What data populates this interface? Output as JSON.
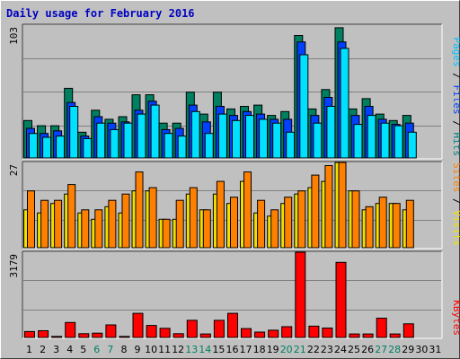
{
  "title": "Daily usage for February 2016",
  "side_labels": {
    "hits_group": [
      {
        "text": "Pages",
        "color": "#00c0ff"
      },
      {
        "text": " / ",
        "color": "#000000"
      },
      {
        "text": "Files",
        "color": "#0040ff"
      },
      {
        "text": " / ",
        "color": "#000000"
      },
      {
        "text": "Hits",
        "color": "#008080"
      }
    ],
    "sites_group": [
      {
        "text": "Sites",
        "color": "#ff8000"
      },
      {
        "text": " / ",
        "color": "#000000"
      },
      {
        "text": "Visits",
        "color": "#f0e000"
      }
    ],
    "kbytes_group": [
      {
        "text": "KBytes",
        "color": "#ff0000"
      }
    ]
  },
  "colors": {
    "background": "#c0c0c0",
    "title": "#0000c0",
    "grid": "#808080",
    "hits": "#008060",
    "files": "#0040ff",
    "pages": "#00e0ff",
    "visits": "#f0e000",
    "sites": "#ff8000",
    "kbytes": "#ff0000",
    "weekend": "#008060"
  },
  "chart_data": [
    {
      "type": "bar",
      "panel": "hits",
      "ymax_label": "103",
      "ylim": [
        0,
        103
      ],
      "x": [
        "1",
        "2",
        "3",
        "4",
        "5",
        "6",
        "7",
        "8",
        "9",
        "10",
        "11",
        "12",
        "13",
        "14",
        "15",
        "16",
        "17",
        "18",
        "19",
        "20",
        "21",
        "22",
        "23",
        "24",
        "25",
        "26",
        "27",
        "28",
        "29",
        "30",
        "31"
      ],
      "weekend_days": [
        "6",
        "7",
        "13",
        "14",
        "20",
        "21",
        "27",
        "28"
      ],
      "series": [
        {
          "name": "Hits",
          "values": [
            29,
            25,
            25,
            54,
            20,
            37,
            30,
            32,
            49,
            49,
            27,
            27,
            51,
            34,
            51,
            38,
            40,
            41,
            33,
            36,
            95,
            38,
            53,
            101,
            38,
            46,
            34,
            29,
            33,
            0,
            0
          ]
        },
        {
          "name": "Files",
          "values": [
            23,
            19,
            21,
            43,
            17,
            32,
            27,
            28,
            37,
            44,
            22,
            23,
            41,
            28,
            40,
            33,
            36,
            34,
            30,
            30,
            90,
            33,
            47,
            90,
            33,
            40,
            30,
            26,
            27,
            0,
            0
          ]
        },
        {
          "name": "Pages",
          "values": [
            19,
            16,
            17,
            40,
            15,
            27,
            22,
            27,
            34,
            41,
            19,
            17,
            36,
            19,
            34,
            29,
            33,
            30,
            27,
            20,
            80,
            27,
            40,
            85,
            26,
            33,
            27,
            25,
            20,
            0,
            0
          ]
        }
      ]
    },
    {
      "type": "bar",
      "panel": "sites",
      "ymax_label": "27",
      "ylim": [
        0,
        27
      ],
      "x": [
        "1",
        "2",
        "3",
        "4",
        "5",
        "6",
        "7",
        "8",
        "9",
        "10",
        "11",
        "12",
        "13",
        "14",
        "15",
        "16",
        "17",
        "18",
        "19",
        "20",
        "21",
        "22",
        "23",
        "24",
        "25",
        "26",
        "27",
        "28",
        "29",
        "30",
        "31"
      ],
      "series": [
        {
          "name": "Visits",
          "values": [
            12,
            11,
            14,
            17,
            11,
            9,
            13,
            11,
            18,
            18,
            9,
            9,
            17,
            12,
            17,
            14,
            21,
            11,
            10,
            14,
            17,
            19,
            21,
            27,
            18,
            12,
            14,
            14,
            12,
            0,
            0
          ]
        },
        {
          "name": "Sites",
          "values": [
            18,
            15,
            15,
            20,
            12,
            12,
            15,
            17,
            24,
            19,
            9,
            15,
            19,
            12,
            21,
            16,
            24,
            15,
            12,
            16,
            18,
            23,
            26,
            27,
            18,
            13,
            16,
            14,
            15,
            0,
            0
          ]
        }
      ]
    },
    {
      "type": "bar",
      "panel": "kbytes",
      "ymax_label": "3179",
      "ylim": [
        0,
        3179
      ],
      "x": [
        "1",
        "2",
        "3",
        "4",
        "5",
        "6",
        "7",
        "8",
        "9",
        "10",
        "11",
        "12",
        "13",
        "14",
        "15",
        "16",
        "17",
        "18",
        "19",
        "20",
        "21",
        "22",
        "23",
        "24",
        "25",
        "26",
        "27",
        "28",
        "29",
        "30",
        "31"
      ],
      "series": [
        {
          "name": "KBytes",
          "values": [
            220,
            250,
            40,
            560,
            140,
            160,
            470,
            40,
            900,
            450,
            340,
            140,
            640,
            130,
            640,
            900,
            330,
            200,
            270,
            400,
            3179,
            420,
            350,
            2800,
            130,
            130,
            720,
            130,
            510,
            0,
            0
          ]
        }
      ]
    }
  ]
}
